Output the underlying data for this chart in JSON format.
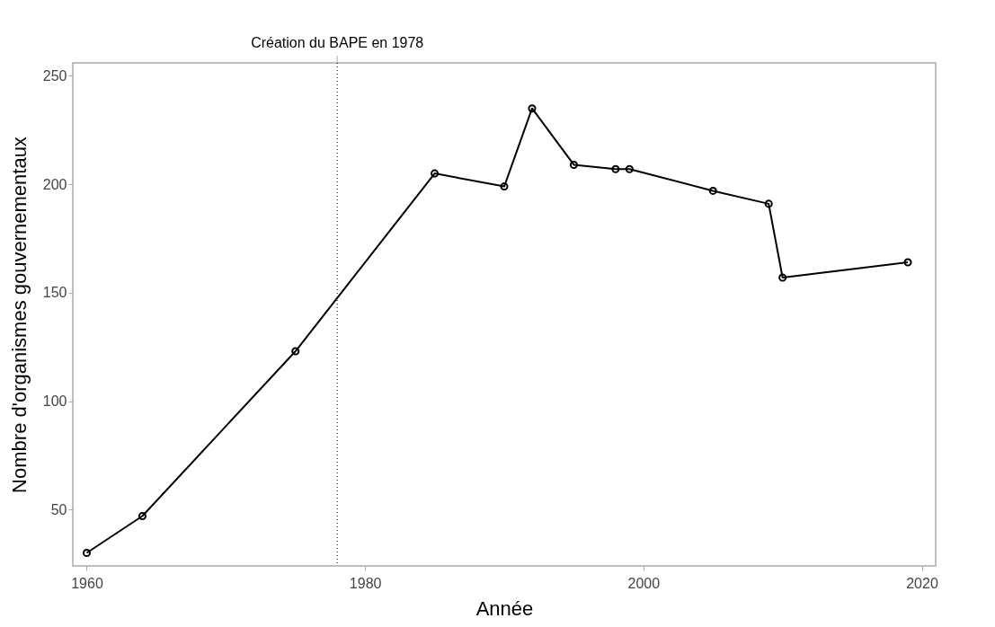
{
  "chart_data": {
    "type": "line",
    "xlabel": "Année",
    "ylabel": "Nombre d'organismes gouvernementaux",
    "x": [
      1960,
      1964,
      1975,
      1985,
      1990,
      1992,
      1995,
      1998,
      1999,
      2005,
      2009,
      2010,
      2019
    ],
    "series": [
      {
        "color": "#000000",
        "values": [
          30,
          47,
          123,
          205,
          199,
          235,
          209,
          207,
          207,
          197,
          191,
          157,
          164
        ]
      }
    ],
    "xlim": [
      1959,
      2021
    ],
    "xticks": [
      1960,
      1980,
      2000,
      2020
    ],
    "ylim": [
      24,
      256
    ],
    "yticks": [
      50,
      100,
      150,
      200,
      250
    ],
    "ref_lines": [
      {
        "axis": "x",
        "value": 1978,
        "label": "Création du BAPE en 1978",
        "line_style": "dotted",
        "color": "#000000"
      }
    ],
    "marker": "circle",
    "line_style": "solid",
    "grid": false
  }
}
